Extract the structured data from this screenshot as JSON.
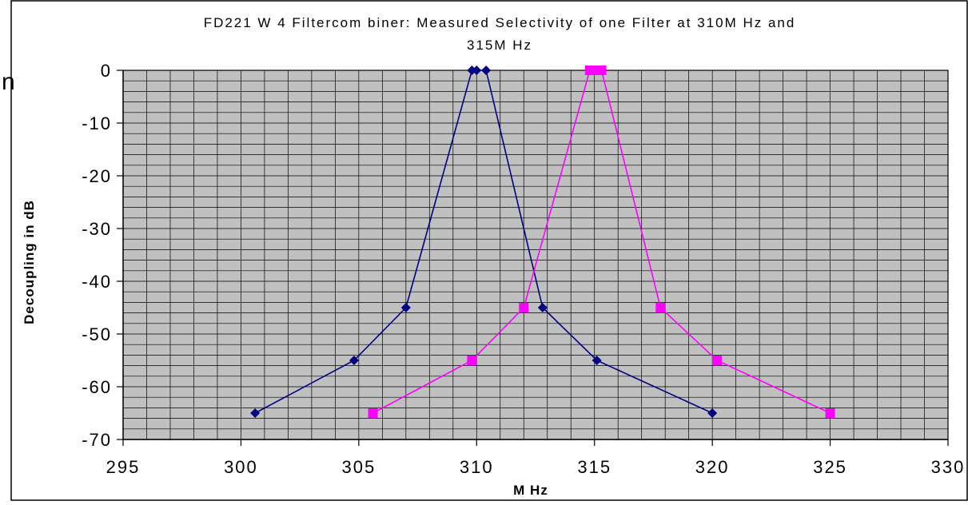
{
  "chart_data": {
    "type": "line",
    "title_line1": "FD221 W 4 Filtercom biner: Measured Selectivity of one Filter at 310M Hz and",
    "title_line2": "315M Hz",
    "edge_fragment": "n",
    "xlabel": "M Hz",
    "ylabel": "Decoupling in dB",
    "xlim": [
      295,
      330
    ],
    "ylim": [
      -70,
      0
    ],
    "x_ticks": [
      295,
      300,
      305,
      310,
      315,
      320,
      325,
      330
    ],
    "y_ticks": [
      0,
      -10,
      -20,
      -30,
      -40,
      -50,
      -60,
      -70
    ],
    "x_tick_labels": [
      "295",
      "300",
      "305",
      "310",
      "315",
      "320",
      "325",
      "330"
    ],
    "y_tick_labels": [
      "0",
      "-10",
      "-20",
      "-30",
      "-40",
      "-50",
      "-60",
      "-70"
    ],
    "grid": true,
    "plot_background": "#c0c0c0",
    "series": [
      {
        "color": "#000080",
        "marker": "diamond",
        "points": [
          [
            300.6,
            -65
          ],
          [
            304.8,
            -55
          ],
          [
            307.0,
            -45
          ],
          [
            309.8,
            0
          ],
          [
            310.0,
            0
          ],
          [
            310.4,
            0
          ],
          [
            312.8,
            -45
          ],
          [
            315.1,
            -55
          ],
          [
            320.0,
            -65
          ]
        ]
      },
      {
        "color": "#ff00ff",
        "marker": "square",
        "points": [
          [
            305.6,
            -65
          ],
          [
            309.8,
            -55
          ],
          [
            312.0,
            -45
          ],
          [
            314.8,
            0
          ],
          [
            315.0,
            0
          ],
          [
            315.3,
            0
          ],
          [
            317.8,
            -45
          ],
          [
            320.2,
            -55
          ],
          [
            325.0,
            -65
          ]
        ]
      }
    ]
  }
}
